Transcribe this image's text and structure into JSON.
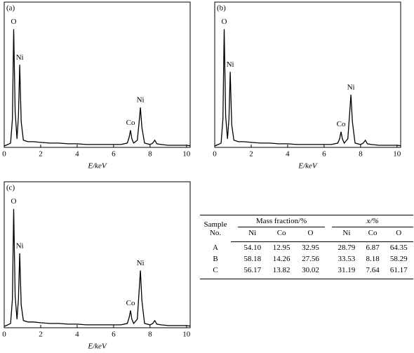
{
  "chart_data": [
    {
      "type": "line",
      "panel": "(a)",
      "x_label": "E/keV",
      "color": "#000000",
      "x": [
        0,
        0.2,
        0.35,
        0.45,
        0.52,
        0.6,
        0.7,
        0.78,
        0.85,
        0.93,
        1.05,
        1.3,
        1.6,
        2,
        2.5,
        3,
        3.5,
        4,
        4.5,
        5,
        5.5,
        6,
        6.4,
        6.75,
        6.85,
        6.93,
        7.0,
        7.1,
        7.3,
        7.4,
        7.47,
        7.55,
        7.7,
        8.0,
        8.15,
        8.26,
        8.37,
        8.6,
        9,
        9.5,
        10,
        10.3
      ],
      "values": [
        1,
        2,
        3,
        20,
        83,
        25,
        6,
        22,
        58,
        18,
        5,
        4,
        4,
        3.5,
        3,
        3,
        2.5,
        2.5,
        2,
        2,
        2,
        2,
        2,
        3,
        7,
        12,
        6,
        3,
        5,
        18,
        28,
        14,
        3,
        2,
        3,
        5,
        2.5,
        2,
        1.5,
        1.5,
        1.5,
        1
      ],
      "xlim": [
        0,
        10.2
      ],
      "xticks": [
        0,
        2,
        4,
        6,
        8,
        10
      ],
      "ylim": [
        0,
        100
      ],
      "annotations": [
        {
          "text": "O",
          "x": 0.52
        },
        {
          "text": "Ni",
          "x": 0.85
        },
        {
          "text": "Co",
          "x": 6.93
        },
        {
          "text": "Ni",
          "x": 7.47
        }
      ]
    },
    {
      "type": "line",
      "panel": "(b)",
      "x_label": "E/keV",
      "color": "#000000",
      "x": [
        0,
        0.2,
        0.35,
        0.45,
        0.52,
        0.6,
        0.7,
        0.78,
        0.85,
        0.93,
        1.05,
        1.3,
        1.6,
        2,
        2.5,
        3,
        3.5,
        4,
        4.5,
        5,
        5.5,
        6,
        6.4,
        6.75,
        6.85,
        6.93,
        7.0,
        7.1,
        7.3,
        7.4,
        7.47,
        7.55,
        7.7,
        8.0,
        8.15,
        8.26,
        8.37,
        8.6,
        9,
        9.5,
        10,
        10.3
      ],
      "values": [
        1,
        2,
        3,
        20,
        83,
        22,
        6,
        20,
        53,
        16,
        5,
        4,
        4,
        3.5,
        3,
        3,
        2.5,
        2.5,
        2,
        2,
        2,
        2,
        2,
        3,
        6,
        11,
        6,
        3,
        6,
        24,
        37,
        18,
        3,
        2,
        3,
        5,
        2.5,
        2,
        1.5,
        1.5,
        1.5,
        1
      ],
      "xlim": [
        0,
        10.2
      ],
      "xticks": [
        0,
        2,
        4,
        6,
        8,
        10
      ],
      "ylim": [
        0,
        100
      ],
      "annotations": [
        {
          "text": "O",
          "x": 0.52
        },
        {
          "text": "Ni",
          "x": 0.85
        },
        {
          "text": "Co",
          "x": 6.93
        },
        {
          "text": "Ni",
          "x": 7.47
        }
      ]
    },
    {
      "type": "line",
      "panel": "(c)",
      "x_label": "E/keV",
      "color": "#000000",
      "x": [
        0,
        0.2,
        0.35,
        0.45,
        0.52,
        0.6,
        0.7,
        0.78,
        0.85,
        0.93,
        1.05,
        1.3,
        1.6,
        2,
        2.5,
        3,
        3.5,
        4,
        4.5,
        5,
        5.5,
        6,
        6.4,
        6.75,
        6.85,
        6.93,
        7.0,
        7.1,
        7.3,
        7.4,
        7.47,
        7.55,
        7.7,
        8.0,
        8.15,
        8.26,
        8.37,
        8.6,
        9,
        9.5,
        10,
        10.3
      ],
      "values": [
        1,
        2,
        3,
        20,
        83,
        22,
        6,
        20,
        52,
        16,
        5,
        4,
        4,
        3.5,
        3,
        3,
        2.5,
        2.5,
        2,
        2,
        2,
        2,
        2,
        3,
        7,
        12,
        6,
        3,
        6,
        26,
        40,
        19,
        3,
        2,
        3,
        5,
        2.5,
        2,
        1.5,
        1.5,
        1.5,
        1
      ],
      "xlim": [
        0,
        10.2
      ],
      "xticks": [
        0,
        2,
        4,
        6,
        8,
        10
      ],
      "ylim": [
        0,
        100
      ],
      "annotations": [
        {
          "text": "O",
          "x": 0.52
        },
        {
          "text": "Ni",
          "x": 0.85
        },
        {
          "text": "Co",
          "x": 6.93
        },
        {
          "text": "Ni",
          "x": 7.47
        }
      ]
    }
  ],
  "table": {
    "sample_header": "Sample No.",
    "groups": [
      "Mass fraction/%",
      "x/%"
    ],
    "columns": [
      "Ni",
      "Co",
      "O",
      "Ni",
      "Co",
      "O"
    ],
    "rows": [
      [
        "A",
        "54.10",
        "12.95",
        "32.95",
        "28.79",
        "6.87",
        "64.35"
      ],
      [
        "B",
        "58.18",
        "14.26",
        "27.56",
        "33.53",
        "8.18",
        "58.29"
      ],
      [
        "C",
        "56.17",
        "13.82",
        "30.02",
        "31.19",
        "7.64",
        "61.17"
      ]
    ]
  }
}
